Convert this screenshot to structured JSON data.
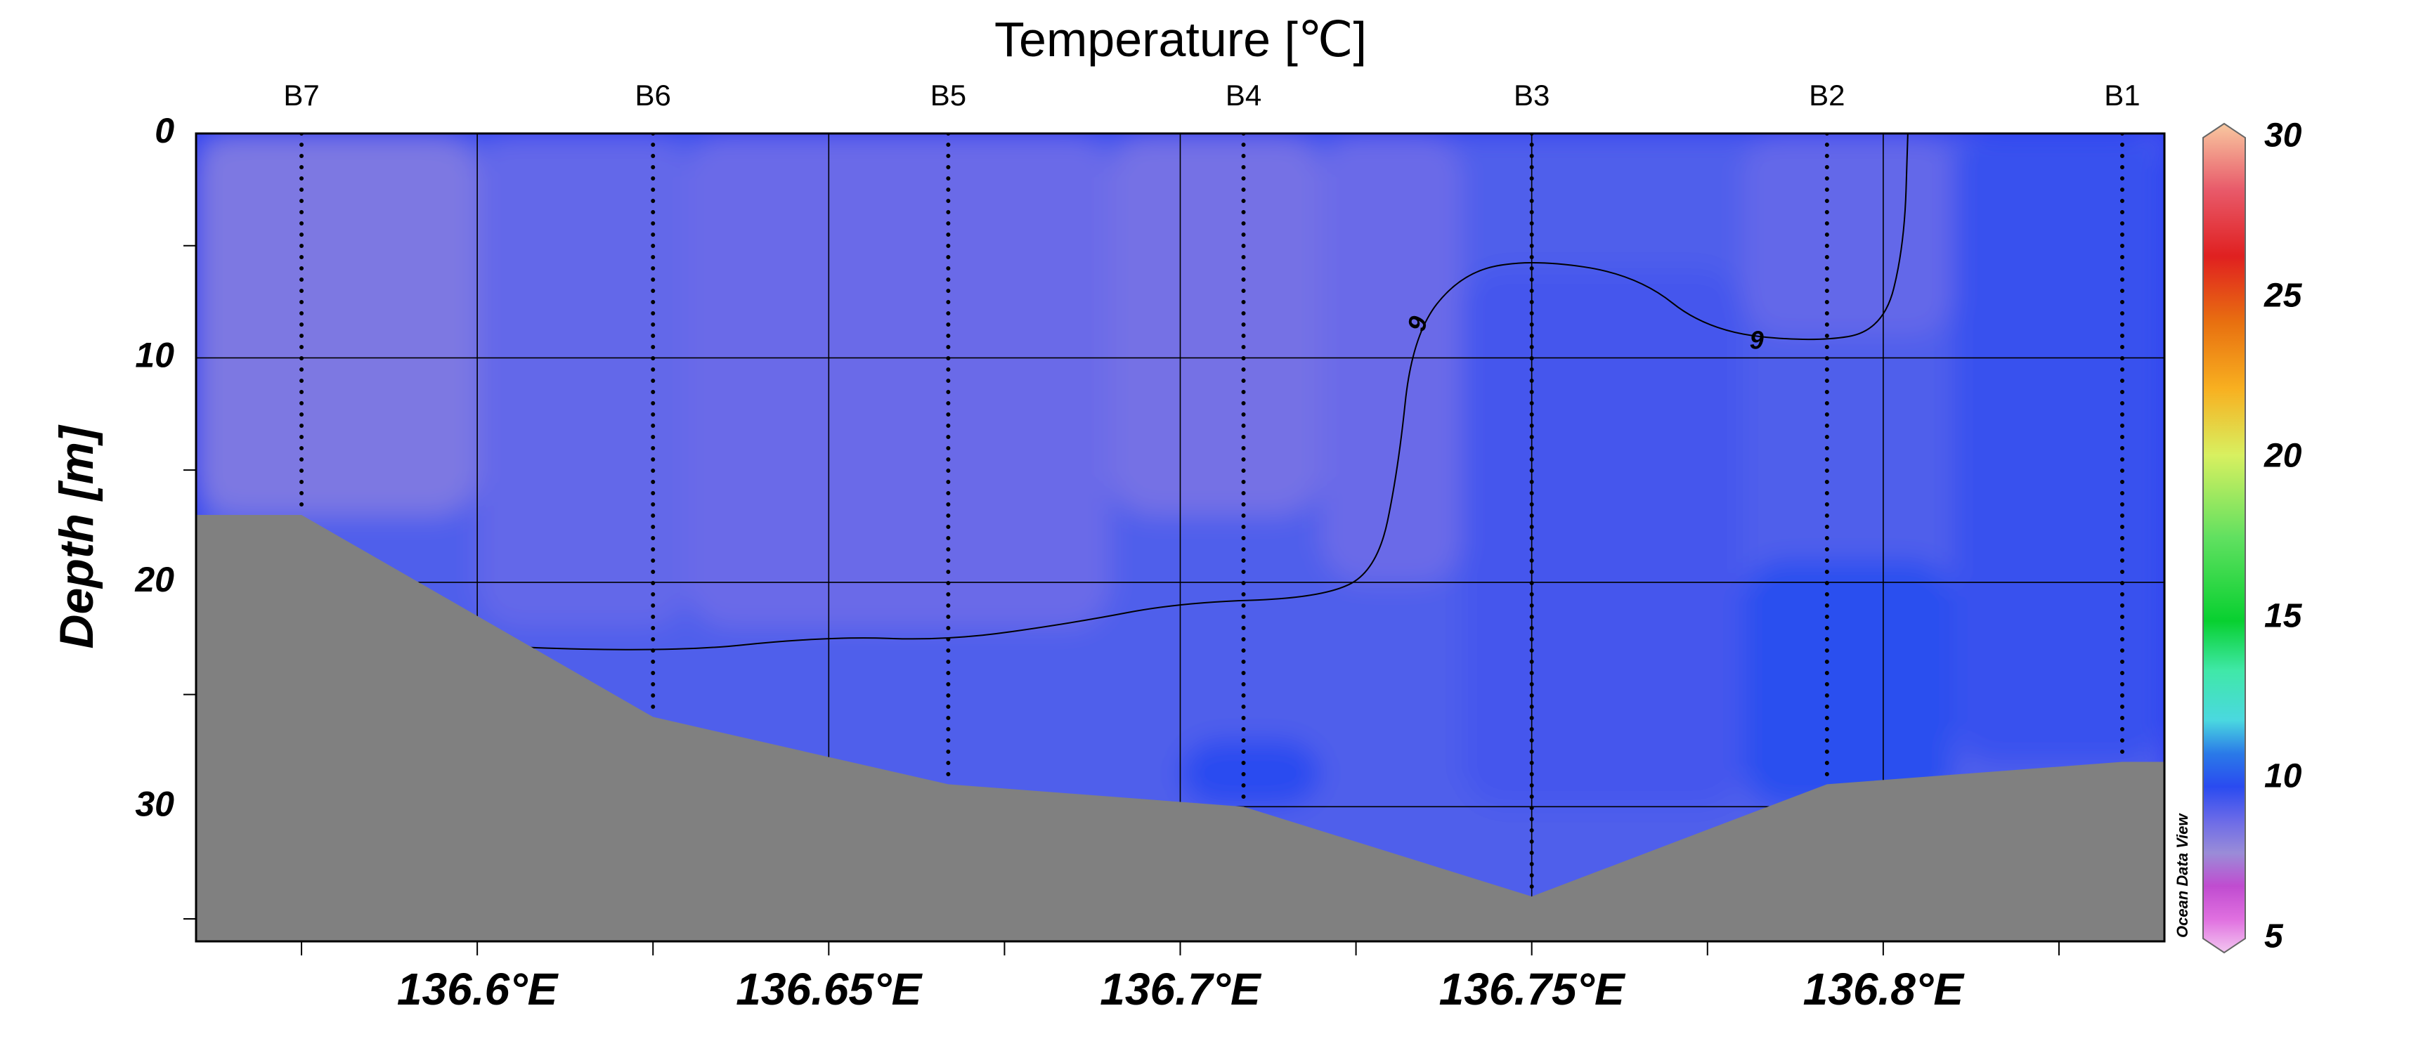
{
  "chart_data": {
    "type": "heatmap",
    "title": "Temperature [℃]",
    "ylabel": "Depth [m]",
    "xlabel": "",
    "xlim": [
      136.56,
      136.84
    ],
    "ylim": [
      36,
      0
    ],
    "x_ticks": [
      136.6,
      136.65,
      136.7,
      136.75,
      136.8
    ],
    "x_tick_labels": [
      "136.6°E",
      "136.65°E",
      "136.7°E",
      "136.75°E",
      "136.8°E"
    ],
    "y_ticks": [
      0,
      10,
      20,
      30
    ],
    "y_tick_labels": [
      "0",
      "10",
      "20",
      "30"
    ],
    "grid": true,
    "stations": [
      {
        "name": "B7",
        "lon": 136.575,
        "bottom_depth": 17
      },
      {
        "name": "B6",
        "lon": 136.625,
        "bottom_depth": 26
      },
      {
        "name": "B5",
        "lon": 136.667,
        "bottom_depth": 29
      },
      {
        "name": "B4",
        "lon": 136.709,
        "bottom_depth": 30
      },
      {
        "name": "B3",
        "lon": 136.75,
        "bottom_depth": 34
      },
      {
        "name": "B2",
        "lon": 136.792,
        "bottom_depth": 29
      },
      {
        "name": "B1",
        "lon": 136.834,
        "bottom_depth": 28
      }
    ],
    "bathymetry": [
      {
        "lon": 136.56,
        "depth": 17
      },
      {
        "lon": 136.575,
        "depth": 17
      },
      {
        "lon": 136.625,
        "depth": 26
      },
      {
        "lon": 136.667,
        "depth": 29
      },
      {
        "lon": 136.709,
        "depth": 30
      },
      {
        "lon": 136.75,
        "depth": 34
      },
      {
        "lon": 136.792,
        "depth": 29
      },
      {
        "lon": 136.834,
        "depth": 28
      },
      {
        "lon": 136.84,
        "depth": 28
      }
    ],
    "temperature_field": [
      {
        "lon_range": [
          136.56,
          136.6
        ],
        "depth_range": [
          0,
          17
        ],
        "value": 8.6
      },
      {
        "lon_range": [
          136.6,
          136.63
        ],
        "depth_range": [
          0,
          22
        ],
        "value": 9.1
      },
      {
        "lon_range": [
          136.63,
          136.69
        ],
        "depth_range": [
          0,
          22
        ],
        "value": 9.0
      },
      {
        "lon_range": [
          136.69,
          136.72
        ],
        "depth_range": [
          0,
          17
        ],
        "value": 8.8
      },
      {
        "lon_range": [
          136.72,
          136.74
        ],
        "depth_range": [
          0,
          20
        ],
        "value": 9.0
      },
      {
        "lon_range": [
          136.74,
          136.78
        ],
        "depth_range": [
          6,
          30
        ],
        "value": 9.6
      },
      {
        "lon_range": [
          136.78,
          136.81
        ],
        "depth_range": [
          0,
          9
        ],
        "value": 9.1
      },
      {
        "lon_range": [
          136.81,
          136.84
        ],
        "depth_range": [
          0,
          28
        ],
        "value": 9.8
      },
      {
        "lon_range": [
          136.78,
          136.81
        ],
        "depth_range": [
          19,
          30
        ],
        "value": 10.1
      },
      {
        "lon_range": [
          136.7,
          136.72
        ],
        "depth_range": [
          27,
          30
        ],
        "value": 10.0
      }
    ],
    "contours": [
      {
        "level": 9,
        "label": "9",
        "points": [
          {
            "lon": 136.6,
            "depth": 22.8
          },
          {
            "lon": 136.625,
            "depth": 23.2
          },
          {
            "lon": 136.65,
            "depth": 22.4
          },
          {
            "lon": 136.667,
            "depth": 22.6
          },
          {
            "lon": 136.685,
            "depth": 21.8
          },
          {
            "lon": 136.7,
            "depth": 20.9
          },
          {
            "lon": 136.72,
            "depth": 20.7
          },
          {
            "lon": 136.728,
            "depth": 19.5
          },
          {
            "lon": 136.731,
            "depth": 15
          },
          {
            "lon": 136.733,
            "depth": 9
          },
          {
            "lon": 136.74,
            "depth": 6.2
          },
          {
            "lon": 136.75,
            "depth": 5.6
          },
          {
            "lon": 136.765,
            "depth": 6.3
          },
          {
            "lon": 136.775,
            "depth": 8.8
          },
          {
            "lon": 136.79,
            "depth": 9.3
          },
          {
            "lon": 136.8,
            "depth": 8.8
          },
          {
            "lon": 136.803,
            "depth": 5
          },
          {
            "lon": 136.8035,
            "depth": 0
          }
        ],
        "label_positions": [
          {
            "lon": 136.734,
            "depth": 8.5,
            "angle": -75
          },
          {
            "lon": 136.782,
            "depth": 9.3,
            "angle": 0
          }
        ]
      }
    ],
    "colorbar": {
      "min": 5,
      "max": 30,
      "labels": [
        "30",
        "25",
        "20",
        "15",
        "10",
        "5"
      ],
      "stops": [
        {
          "value": 5,
          "color": "#f2c6f0"
        },
        {
          "value": 6,
          "color": "#e070e0"
        },
        {
          "value": 7,
          "color": "#c04cd0"
        },
        {
          "value": 8,
          "color": "#9a8cd8"
        },
        {
          "value": 9,
          "color": "#6a6ae8"
        },
        {
          "value": 10,
          "color": "#2a4bf0"
        },
        {
          "value": 11,
          "color": "#2a7ae8"
        },
        {
          "value": 12,
          "color": "#4ad8e0"
        },
        {
          "value": 13.5,
          "color": "#40e8a8"
        },
        {
          "value": 15,
          "color": "#08d030"
        },
        {
          "value": 17.5,
          "color": "#60e060"
        },
        {
          "value": 20,
          "color": "#d8f060"
        },
        {
          "value": 22,
          "color": "#f8b020"
        },
        {
          "value": 24,
          "color": "#e87010"
        },
        {
          "value": 26,
          "color": "#e02020"
        },
        {
          "value": 28,
          "color": "#e85a6a"
        },
        {
          "value": 30,
          "color": "#f8c8a0"
        }
      ]
    },
    "watermark": "Ocean Data View"
  }
}
